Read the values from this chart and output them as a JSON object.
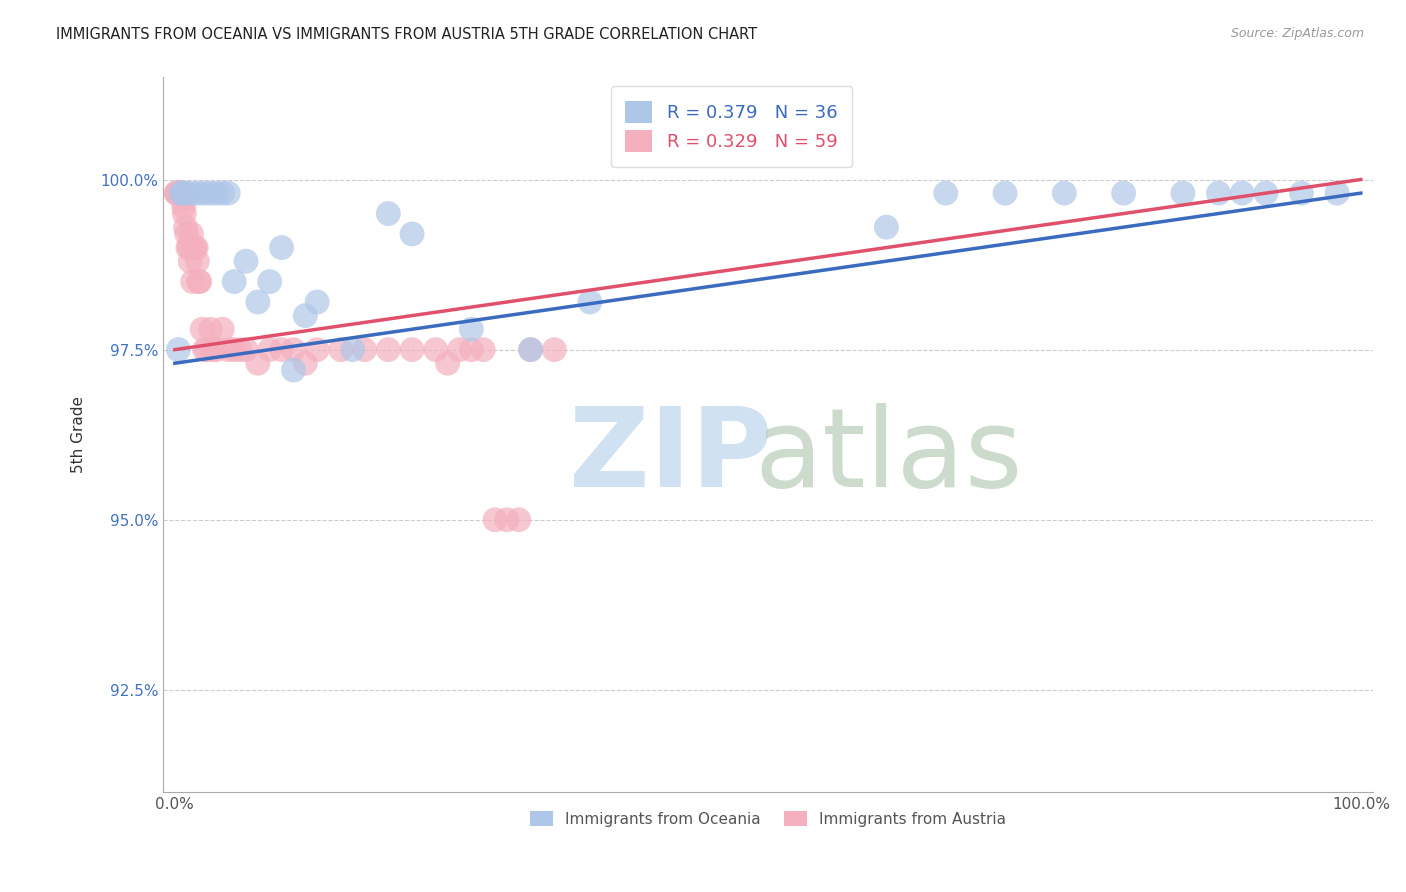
{
  "title": "IMMIGRANTS FROM OCEANIA VS IMMIGRANTS FROM AUSTRIA 5TH GRADE CORRELATION CHART",
  "source": "Source: ZipAtlas.com",
  "ylabel": "5th Grade",
  "xlim": [
    -1,
    101
  ],
  "ylim": [
    91.0,
    101.5
  ],
  "yticks": [
    92.5,
    95.0,
    97.5,
    100.0
  ],
  "ytick_labels": [
    "92.5%",
    "95.0%",
    "97.5%",
    "100.0%"
  ],
  "xtick_vals": [
    0,
    10,
    20,
    30,
    40,
    50,
    60,
    70,
    80,
    90,
    100
  ],
  "xtick_labels": [
    "0.0%",
    "",
    "",
    "",
    "",
    "",
    "",
    "",
    "",
    "",
    "100.0%"
  ],
  "oceania_color": "#aec6e8",
  "austria_color": "#f4b0be",
  "trendline_oceania_color": "#3a6bbf",
  "trendline_austria_color": "#e0506a",
  "r_oceania": 0.379,
  "n_oceania": 36,
  "r_austria": 0.329,
  "n_austria": 59,
  "oceania_x": [
    0.3,
    0.5,
    0.7,
    1.0,
    1.5,
    2.0,
    2.5,
    3.0,
    3.5,
    4.0,
    4.5,
    5.0,
    6.0,
    7.0,
    8.0,
    9.0,
    10.0,
    11.0,
    12.0,
    15.0,
    18.0,
    20.0,
    25.0,
    30.0,
    35.0,
    60.0,
    65.0,
    70.0,
    75.0,
    80.0,
    85.0,
    88.0,
    90.0,
    92.0,
    95.0,
    98.0
  ],
  "oceania_y": [
    97.5,
    99.8,
    99.8,
    99.8,
    99.8,
    99.8,
    99.8,
    99.8,
    99.8,
    99.8,
    99.8,
    98.5,
    98.8,
    98.2,
    98.5,
    99.0,
    97.2,
    98.0,
    98.2,
    97.5,
    99.5,
    99.2,
    97.8,
    97.5,
    98.2,
    99.3,
    99.8,
    99.8,
    99.8,
    99.8,
    99.8,
    99.8,
    99.8,
    99.8,
    99.8,
    99.8
  ],
  "austria_x": [
    0.1,
    0.15,
    0.2,
    0.25,
    0.3,
    0.35,
    0.4,
    0.45,
    0.5,
    0.55,
    0.6,
    0.65,
    0.7,
    0.75,
    0.8,
    0.9,
    1.0,
    1.1,
    1.2,
    1.3,
    1.4,
    1.5,
    1.6,
    1.7,
    1.8,
    1.9,
    2.0,
    2.1,
    2.3,
    2.5,
    2.7,
    3.0,
    3.2,
    3.5,
    4.0,
    4.5,
    5.0,
    5.5,
    6.0,
    7.0,
    8.0,
    9.0,
    10.0,
    11.0,
    12.0,
    14.0,
    16.0,
    18.0,
    20.0,
    22.0,
    23.0,
    24.0,
    25.0,
    26.0,
    27.0,
    28.0,
    29.0,
    30.0,
    32.0
  ],
  "austria_y": [
    99.8,
    99.8,
    99.8,
    99.8,
    99.8,
    99.8,
    99.8,
    99.8,
    99.8,
    99.8,
    99.8,
    99.8,
    99.7,
    99.6,
    99.5,
    99.3,
    99.2,
    99.0,
    99.0,
    98.8,
    99.2,
    98.5,
    99.0,
    99.0,
    99.0,
    98.8,
    98.5,
    98.5,
    97.8,
    97.5,
    97.5,
    97.8,
    97.5,
    97.5,
    97.8,
    97.5,
    97.5,
    97.5,
    97.5,
    97.3,
    97.5,
    97.5,
    97.5,
    97.3,
    97.5,
    97.5,
    97.5,
    97.5,
    97.5,
    97.5,
    97.3,
    97.5,
    97.5,
    97.5,
    95.0,
    95.0,
    95.0,
    97.5,
    97.5
  ]
}
